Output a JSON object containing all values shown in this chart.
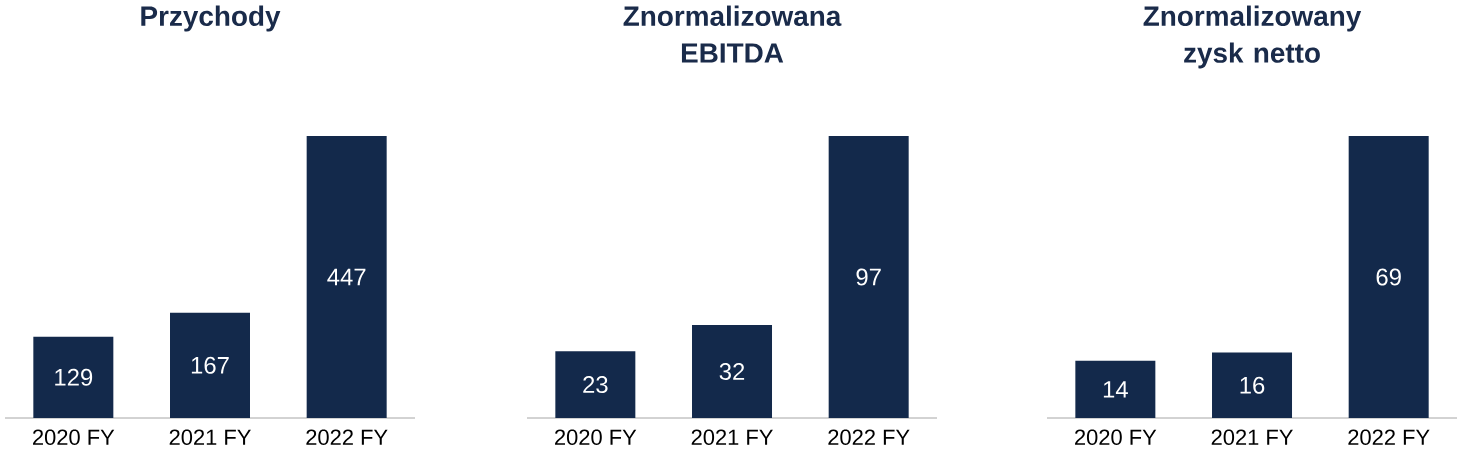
{
  "chart_data": [
    {
      "type": "bar",
      "title": "Przychody",
      "categories": [
        "2020 FY",
        "2021 FY",
        "2022 FY"
      ],
      "values": [
        129,
        167,
        447
      ],
      "color": "#13294b",
      "data_labels": true
    },
    {
      "type": "bar",
      "title": "Znormalizowana EBITDA",
      "categories": [
        "2020 FY",
        "2021 FY",
        "2022 FY"
      ],
      "values": [
        23,
        32,
        97
      ],
      "color": "#13294b",
      "data_labels": true
    },
    {
      "type": "bar",
      "title": "Znormalizowany zysk netto",
      "categories": [
        "2020 FY",
        "2021 FY",
        "2022 FY"
      ],
      "values": [
        14,
        16,
        69
      ],
      "color": "#13294b",
      "data_labels": true
    }
  ]
}
